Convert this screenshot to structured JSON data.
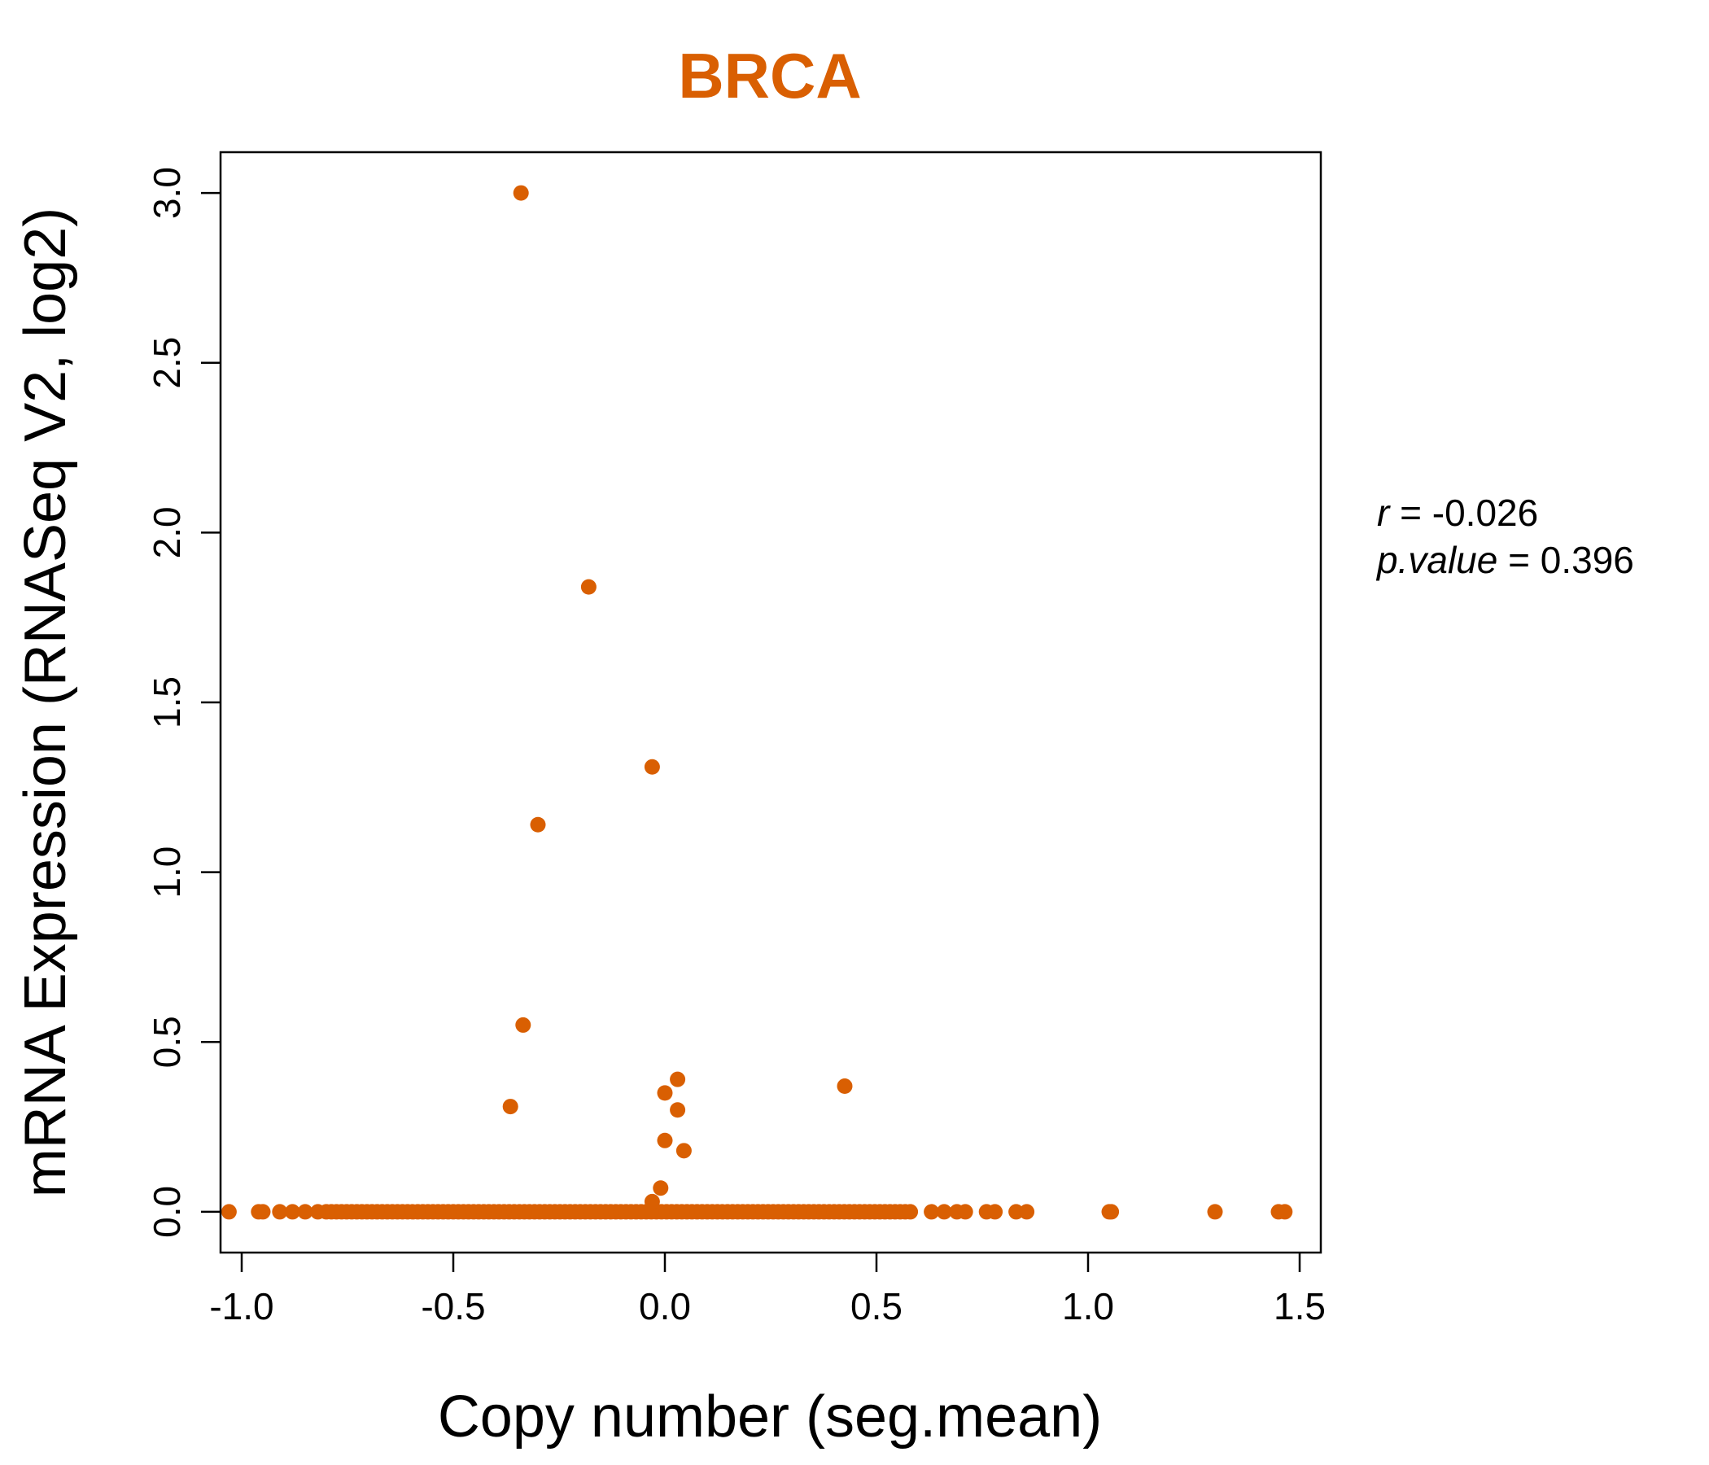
{
  "chart_data": {
    "type": "scatter",
    "title": "BRCA",
    "xlabel": "Copy number (seg.mean)",
    "ylabel": "mRNA Expression (RNASeq V2, log2)",
    "xlim": [
      -1.05,
      1.55
    ],
    "ylim": [
      -0.12,
      3.12
    ],
    "x_ticks": [
      -1.0,
      -0.5,
      0.0,
      0.5,
      1.0,
      1.5
    ],
    "x_tick_labels": [
      "-1.0",
      "-0.5",
      "0.0",
      "0.5",
      "1.0",
      "1.5"
    ],
    "y_ticks": [
      0.0,
      0.5,
      1.0,
      1.5,
      2.0,
      2.5,
      3.0
    ],
    "y_tick_labels": [
      "0.0",
      "0.5",
      "1.0",
      "1.5",
      "2.0",
      "2.5",
      "3.0"
    ],
    "grid": false,
    "point_color": "#D95F02",
    "points": [
      {
        "x": -0.34,
        "y": 3.0
      },
      {
        "x": -0.18,
        "y": 1.84
      },
      {
        "x": -0.03,
        "y": 1.31
      },
      {
        "x": -0.3,
        "y": 1.14
      },
      {
        "x": -0.335,
        "y": 0.55
      },
      {
        "x": -0.365,
        "y": 0.31
      },
      {
        "x": 0.03,
        "y": 0.39
      },
      {
        "x": 0.0,
        "y": 0.35
      },
      {
        "x": 0.03,
        "y": 0.3
      },
      {
        "x": 0.0,
        "y": 0.21
      },
      {
        "x": 0.045,
        "y": 0.18
      },
      {
        "x": 0.425,
        "y": 0.37
      },
      {
        "x": -0.01,
        "y": 0.07
      },
      {
        "x": -0.03,
        "y": 0.03
      }
    ],
    "baseline_points": {
      "y": 0.0,
      "dense_from": -0.8,
      "dense_to": 0.58,
      "x": [
        -1.03,
        -0.96,
        -0.95,
        -0.91,
        -0.88,
        -0.85,
        -0.82,
        0.63,
        0.66,
        0.69,
        0.71,
        0.76,
        0.78,
        0.83,
        0.855,
        1.05,
        1.055,
        1.3,
        1.45,
        1.465
      ]
    },
    "annotations": {
      "r_label": "r",
      "r_value": "-0.026",
      "p_label": "p.value",
      "p_value": "0.396"
    }
  }
}
